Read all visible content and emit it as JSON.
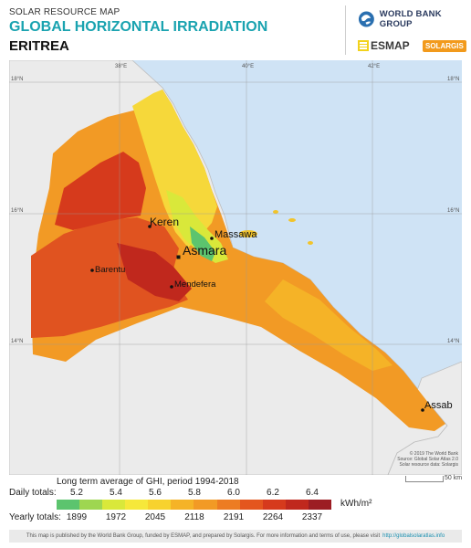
{
  "header": {
    "kicker": "SOLAR RESOURCE MAP",
    "title": "GLOBAL HORIZONTAL IRRADIATION",
    "country": "ERITREA",
    "logos": {
      "world_bank": "WORLD BANK GROUP",
      "esmap": "ESMAP",
      "solargis": "SOLARGIS"
    }
  },
  "map": {
    "latitude_labels": [
      "18°N",
      "16°N",
      "14°N"
    ],
    "longitude_labels": [
      "38°E",
      "40°E",
      "42°E"
    ],
    "cities": [
      {
        "name": "Keren"
      },
      {
        "name": "Massawa"
      },
      {
        "name": "Asmara"
      },
      {
        "name": "Barentu"
      },
      {
        "name": "Mendefera"
      },
      {
        "name": "Assab"
      }
    ],
    "credits": [
      "© 2019 The World Bank",
      "Source: Global Solar Atlas 2.0",
      "Solar resource data: Solargis"
    ],
    "scale_label": "50 km"
  },
  "legend": {
    "title": "Long term average of GHI, period 1994-2018",
    "daily_label": "Daily totals:",
    "daily_values": [
      "5.2",
      "5.4",
      "5.6",
      "5.8",
      "6.0",
      "6.2",
      "6.4"
    ],
    "yearly_label": "Yearly totals:",
    "yearly_values": [
      "1899",
      "1972",
      "2045",
      "2118",
      "2191",
      "2264",
      "2337"
    ],
    "unit": "kWh/m²",
    "colors": [
      "#5cc46e",
      "#9ed650",
      "#d9e83a",
      "#f6e83a",
      "#f7d22e",
      "#f5b327",
      "#f29a25",
      "#ed7c22",
      "#e4561e",
      "#d63a1c",
      "#c0281d",
      "#9c1d23"
    ]
  },
  "footer": {
    "text": "This map is published by the World Bank Group, funded by ESMAP, and prepared by Solargis. For more information and terms of use, please visit",
    "link": "http://globalsolaratlas.info"
  }
}
